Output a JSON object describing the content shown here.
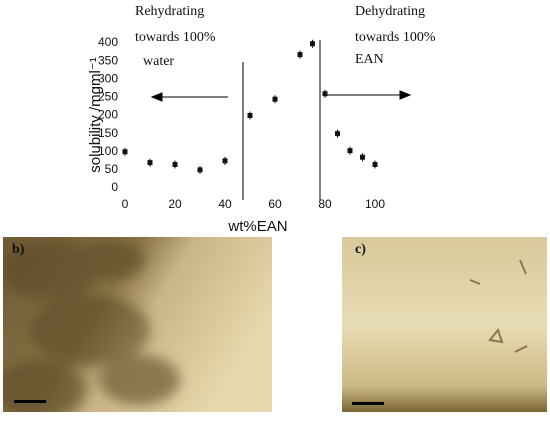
{
  "chart_data": {
    "type": "scatter",
    "x_label": "wt%EAN",
    "y_label": "solubility /mgml⁻¹",
    "x": [
      0,
      10,
      20,
      30,
      40,
      50,
      60,
      70,
      75,
      80,
      85,
      90,
      95,
      100
    ],
    "values": [
      100,
      70,
      65,
      50,
      75,
      200,
      245,
      368,
      398,
      260,
      150,
      103,
      85,
      65
    ],
    "color": "#111111",
    "xlim": [
      0,
      100
    ],
    "xticks": [
      0,
      20,
      40,
      60,
      80,
      100
    ],
    "ylim": [
      0,
      400
    ],
    "yticks": [
      0,
      50,
      100,
      150,
      200,
      250,
      300,
      350,
      400
    ],
    "annotations": [
      [
        "Rehydrating",
        "towards 100%",
        "water"
      ],
      [
        "Dehydrating",
        "towards   100%",
        "EAN"
      ]
    ]
  },
  "panels": [
    {
      "label": "b)"
    },
    {
      "label": "c)"
    }
  ]
}
